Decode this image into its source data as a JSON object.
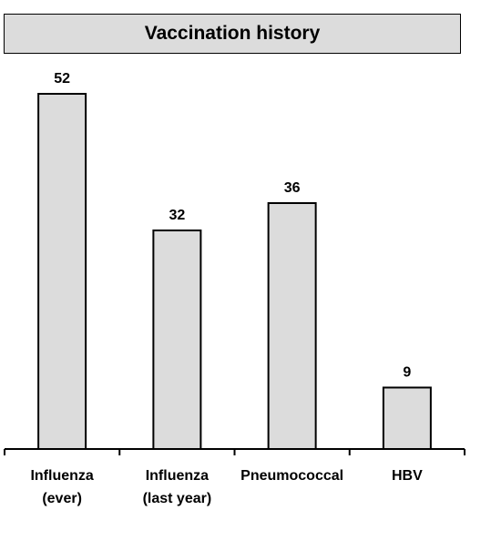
{
  "chart_data": {
    "type": "bar",
    "title": "Vaccination history",
    "categories": [
      [
        "Influenza",
        "(ever)"
      ],
      [
        "Influenza",
        "(last year)"
      ],
      [
        "Pneumococcal"
      ],
      [
        "HBV"
      ]
    ],
    "values": [
      52,
      32,
      36,
      9
    ],
    "ylim": [
      0,
      52
    ],
    "grid": false,
    "legend": "none",
    "bar_color": "#dcdcdc",
    "title_bg": "#dcdcdc"
  }
}
